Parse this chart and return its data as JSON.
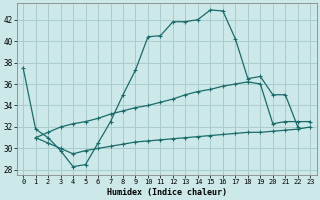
{
  "xlabel": "Humidex (Indice chaleur)",
  "background_color": "#cce8e8",
  "grid_color": "#aacccc",
  "line_color": "#1a6b6b",
  "xlim": [
    -0.5,
    23.5
  ],
  "ylim": [
    27.5,
    43.5
  ],
  "yticks": [
    28,
    30,
    32,
    34,
    36,
    38,
    40,
    42
  ],
  "xticks": [
    0,
    1,
    2,
    3,
    4,
    5,
    6,
    7,
    8,
    9,
    10,
    11,
    12,
    13,
    14,
    15,
    16,
    17,
    18,
    19,
    20,
    21,
    22,
    23
  ],
  "upper_x": [
    0,
    1,
    2,
    3,
    4,
    5,
    6,
    7,
    8,
    9,
    10,
    11,
    12,
    13,
    14,
    15,
    16,
    17,
    18,
    19,
    20,
    21,
    22
  ],
  "upper_y": [
    37.5,
    31.8,
    31.0,
    29.8,
    28.3,
    28.5,
    30.5,
    32.5,
    35.0,
    37.3,
    40.4,
    40.5,
    41.8,
    41.8,
    42.0,
    42.9,
    42.8,
    40.2,
    36.5,
    36.7,
    35.0,
    35.0,
    32.0
  ],
  "mid_x": [
    1,
    2,
    3,
    4,
    5,
    6,
    7,
    8,
    9,
    10,
    11,
    12,
    13,
    14,
    15,
    16,
    17,
    18,
    19,
    20,
    21,
    22,
    23
  ],
  "mid_y": [
    31.0,
    31.5,
    32.0,
    32.3,
    32.5,
    32.8,
    33.2,
    33.5,
    33.8,
    34.0,
    34.3,
    34.6,
    35.0,
    35.3,
    35.5,
    35.8,
    36.0,
    36.2,
    36.0,
    32.3,
    32.5,
    32.5,
    32.5
  ],
  "lower_x": [
    1,
    2,
    3,
    4,
    5,
    6,
    7,
    8,
    9,
    10,
    11,
    12,
    13,
    14,
    15,
    16,
    17,
    18,
    19,
    20,
    21,
    22,
    23
  ],
  "lower_y": [
    31.0,
    30.5,
    30.0,
    29.5,
    29.8,
    30.0,
    30.2,
    30.4,
    30.6,
    30.7,
    30.8,
    30.9,
    31.0,
    31.1,
    31.2,
    31.3,
    31.4,
    31.5,
    31.5,
    31.6,
    31.7,
    31.8,
    32.0
  ]
}
